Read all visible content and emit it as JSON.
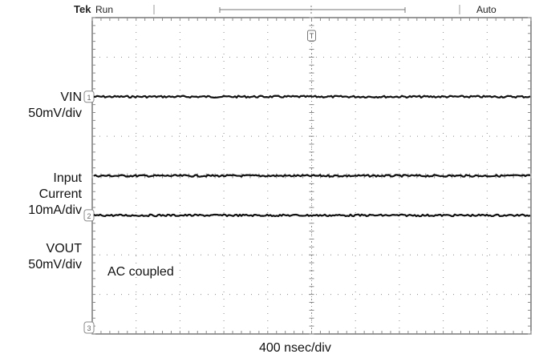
{
  "header": {
    "brand": "Tek",
    "status": "Run",
    "trigger_mode": "Auto"
  },
  "channels": {
    "vin": {
      "name": "VIN",
      "scale": "50mV/div",
      "marker": "1"
    },
    "iin": {
      "name_line1": "Input",
      "name_line2": "Current",
      "scale": "10mA/div"
    },
    "vout": {
      "name": "VOUT",
      "scale": "50mV/div",
      "marker": "2"
    },
    "ch3": {
      "marker": "3"
    }
  },
  "annotations": {
    "coupling": "AC coupled",
    "timebase": "400 nsec/div",
    "trigger_marker": "T"
  },
  "chart_data": {
    "type": "line",
    "grid": true,
    "divisions": {
      "x": 10,
      "y": 8
    },
    "series": [
      {
        "name": "VIN",
        "level_div": 2.0
      },
      {
        "name": "Input Current",
        "level_div": 4.0
      },
      {
        "name": "VOUT",
        "level_div": 5.0
      }
    ],
    "colors": {
      "trace": "#111111",
      "grid": "#8a8a8a",
      "frame": "#555555"
    }
  }
}
